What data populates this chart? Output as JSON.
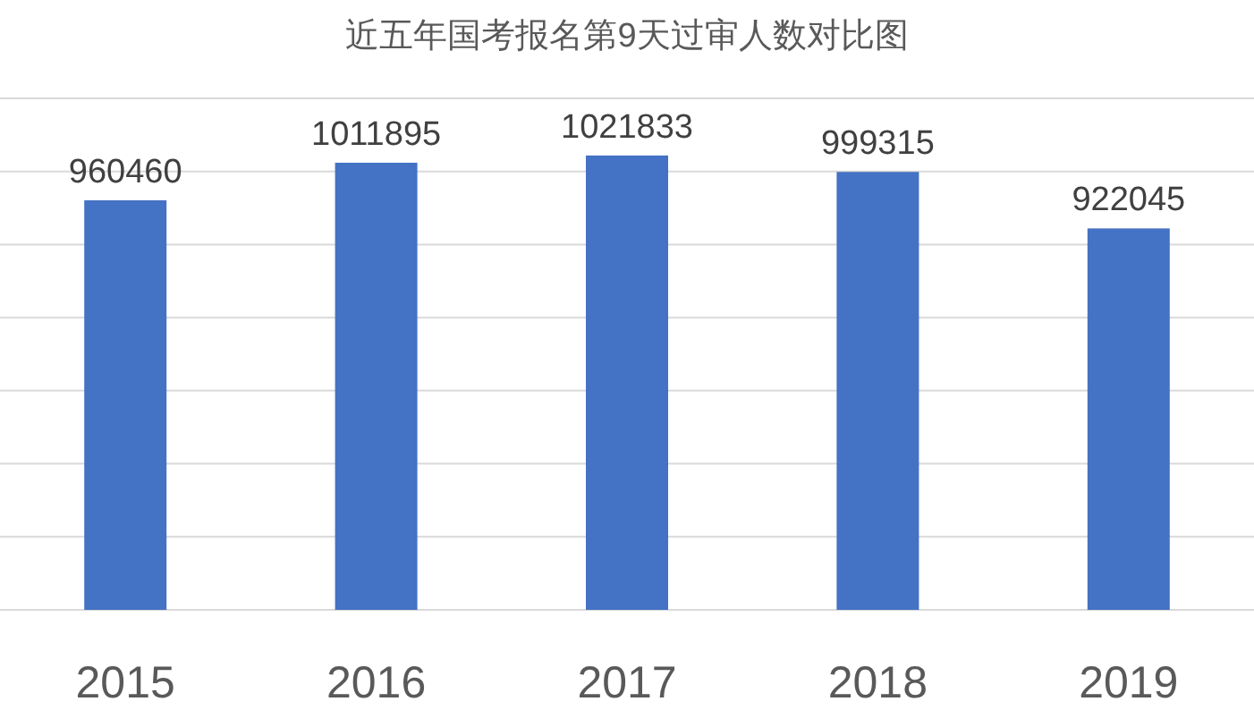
{
  "chart_data": {
    "type": "bar",
    "title": "近五年国考报名第9天过审人数对比图",
    "categories": [
      "2015",
      "2016",
      "2017",
      "2018",
      "2019"
    ],
    "values": [
      960460,
      1011895,
      1021833,
      999315,
      922045
    ],
    "color": "#4472c4",
    "ylim": [
      400000,
      1100000
    ],
    "yticks": [
      {
        "value": 400000,
        "label": null
      },
      {
        "value": 500000,
        "label": null
      },
      {
        "value": 600000,
        "label": null
      },
      {
        "value": 700000,
        "label": null
      },
      {
        "value": 800000,
        "label": null
      },
      {
        "value": 900000,
        "label": null
      },
      {
        "value": 1000000,
        "label": null
      },
      {
        "value": 1100000,
        "label": null
      }
    ],
    "grid": "y",
    "data_labels": true
  }
}
